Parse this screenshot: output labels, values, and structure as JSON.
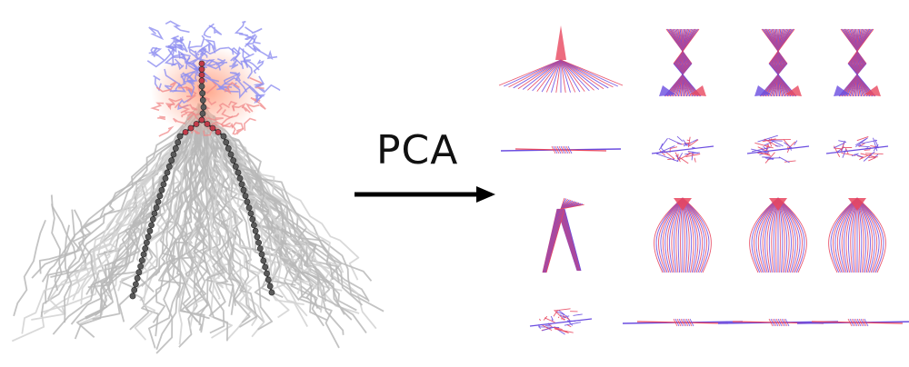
{
  "label": "PCA",
  "colors": {
    "background": "#ffffff",
    "ensemble_gray": "#b8b8b8",
    "ensemble_gray_light": "#d2d2d2",
    "cap_blue": "#8f8ff0",
    "cap_red": "#f08a8a",
    "backbone_beads": "#5a5a5a",
    "mode_red": "#e8475f",
    "mode_blue": "#6a4ce0",
    "arrow": "#000000"
  },
  "modes_grid": {
    "rows": 4,
    "cols": 4
  },
  "modes": [
    {
      "id": 1,
      "style": "fan"
    },
    {
      "id": 2,
      "style": "hourglass"
    },
    {
      "id": 3,
      "style": "hourglass"
    },
    {
      "id": 4,
      "style": "hourglass"
    },
    {
      "id": 5,
      "style": "line"
    },
    {
      "id": 6,
      "style": "knot"
    },
    {
      "id": 7,
      "style": "knot"
    },
    {
      "id": 8,
      "style": "knot"
    },
    {
      "id": 9,
      "style": "vshape"
    },
    {
      "id": 10,
      "style": "bulb"
    },
    {
      "id": 11,
      "style": "bulb"
    },
    {
      "id": 12,
      "style": "bulb"
    },
    {
      "id": 13,
      "style": "knot"
    },
    {
      "id": 14,
      "style": "line"
    },
    {
      "id": 15,
      "style": "line"
    },
    {
      "id": 16,
      "style": "line"
    }
  ]
}
